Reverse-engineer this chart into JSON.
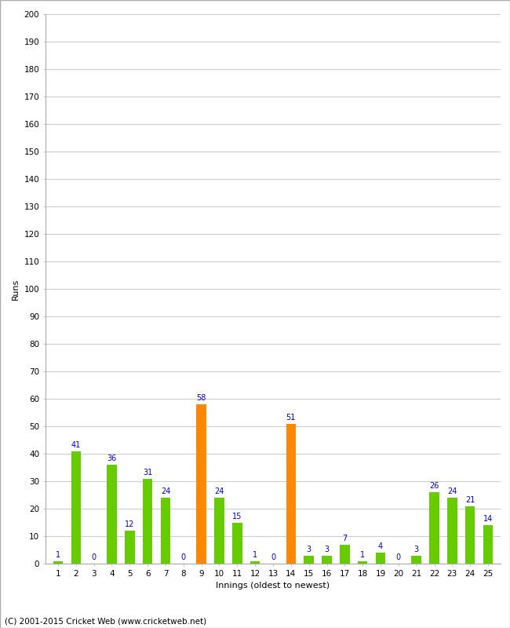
{
  "values": [
    1,
    41,
    0,
    36,
    12,
    31,
    24,
    0,
    58,
    24,
    15,
    1,
    0,
    51,
    3,
    3,
    7,
    1,
    4,
    0,
    3,
    26,
    24,
    21,
    14
  ],
  "innings": [
    1,
    2,
    3,
    4,
    5,
    6,
    7,
    8,
    9,
    10,
    11,
    12,
    13,
    14,
    15,
    16,
    17,
    18,
    19,
    20,
    21,
    22,
    23,
    24,
    25
  ],
  "orange_indices": [
    8,
    13
  ],
  "green_color": "#66cc00",
  "orange_color": "#ff8800",
  "xlabel": "Innings (oldest to newest)",
  "ylabel": "Runs",
  "ylim": [
    0,
    200
  ],
  "yticks": [
    0,
    10,
    20,
    30,
    40,
    50,
    60,
    70,
    80,
    90,
    100,
    110,
    120,
    130,
    140,
    150,
    160,
    170,
    180,
    190,
    200
  ],
  "label_color": "#0000cc",
  "footer": "(C) 2001-2015 Cricket Web (www.cricketweb.net)",
  "background_color": "#ffffff",
  "grid_color": "#cccccc",
  "border_color": "#aaaaaa",
  "tick_label_fontsize": 7.5,
  "axis_label_fontsize": 8,
  "value_label_fontsize": 7,
  "footer_fontsize": 7.5,
  "bar_width": 0.55
}
